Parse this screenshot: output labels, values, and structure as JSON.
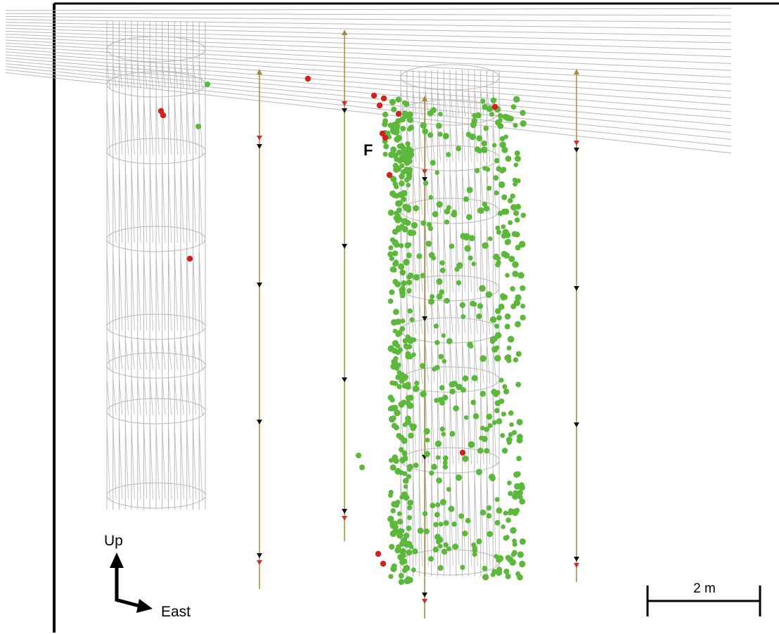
{
  "labels": {
    "feature": "F",
    "axis_up": "Up",
    "axis_east": "East",
    "scale_bar": "2 m"
  },
  "colors": {
    "wireframe": "#b8b8b8",
    "borehole": "#a88a3c",
    "event_green": "#5cb83a",
    "event_red": "#d41f1f",
    "marker_black": "#111111",
    "marker_red": "#d42b2b",
    "frame": "#000000"
  }
}
